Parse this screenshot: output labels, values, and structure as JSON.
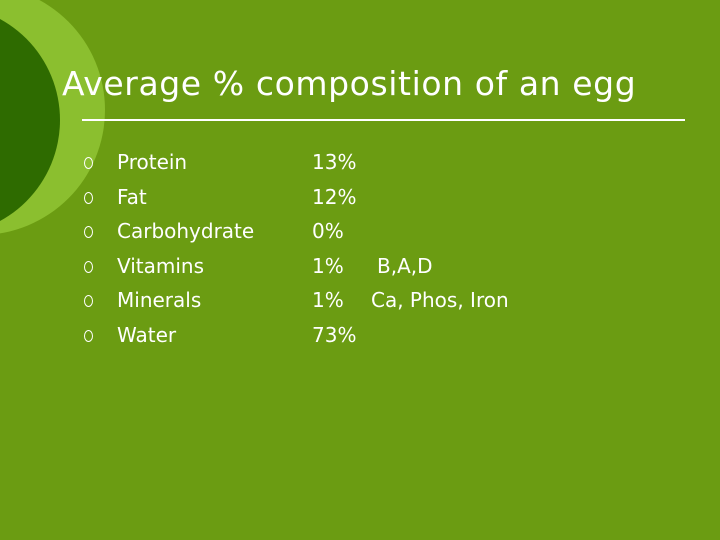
{
  "title": "Average % composition of an egg",
  "colors": {
    "background": "#6b9c12",
    "circle_dark": "#2e6b00",
    "circle_light": "#8bbf2f",
    "text": "#ffffff"
  },
  "bullet_icon": "hollow-circle-bullet",
  "items": [
    {
      "name": "Protein",
      "percent": "13%",
      "note": ""
    },
    {
      "name": "Fat",
      "percent": "12%",
      "note": ""
    },
    {
      "name": "Carbohydrate",
      "percent": "0%",
      "note": ""
    },
    {
      "name": "Vitamins",
      "percent": "1%",
      "note": "B,A,D"
    },
    {
      "name": "Minerals",
      "percent": "1%",
      "note": "Ca, Phos, Iron"
    },
    {
      "name": "Water",
      "percent": "73%",
      "note": ""
    }
  ]
}
